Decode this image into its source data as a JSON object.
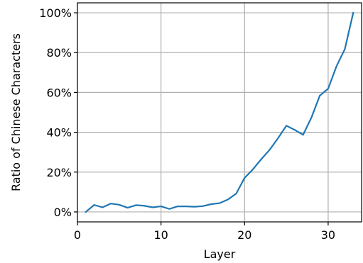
{
  "chart_data": {
    "type": "line",
    "title": "",
    "xlabel": "Layer",
    "ylabel": "Ratio of Chinese Characters",
    "xlim": [
      0,
      34
    ],
    "ylim": [
      -5,
      105
    ],
    "x_ticks": [
      0,
      10,
      20,
      30
    ],
    "x_tick_labels": [
      "0",
      "10",
      "20",
      "30"
    ],
    "y_ticks": [
      0,
      20,
      40,
      60,
      80,
      100
    ],
    "y_tick_labels": [
      "0%",
      "20%",
      "40%",
      "60%",
      "80%",
      "100%"
    ],
    "grid": true,
    "line_color": "#1f77b4",
    "series": [
      {
        "x": [
          1,
          2,
          3,
          4,
          5,
          6,
          7,
          8,
          9,
          10,
          11,
          12,
          13,
          14,
          15,
          16,
          17,
          18,
          19,
          20,
          21,
          22,
          23,
          24,
          25,
          26,
          27,
          28,
          29,
          30,
          31,
          32,
          33
        ],
        "values": [
          0,
          3.5,
          2.3,
          4.2,
          3.6,
          2.1,
          3.4,
          3.1,
          2.3,
          2.8,
          1.5,
          2.8,
          2.8,
          2.6,
          2.9,
          3.9,
          4.4,
          6.2,
          9.2,
          17.1,
          21.4,
          26.5,
          31.2,
          37.0,
          43.3,
          41.2,
          38.7,
          47.4,
          58.4,
          61.9,
          73.2,
          81.8,
          100
        ]
      }
    ]
  }
}
